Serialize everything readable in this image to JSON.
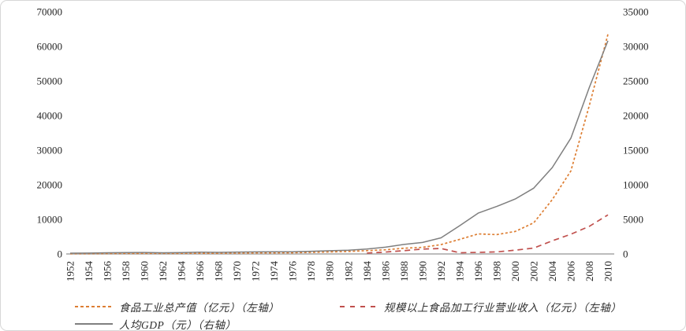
{
  "chart_data": {
    "type": "line",
    "title": "",
    "x": [
      1952,
      1954,
      1956,
      1958,
      1960,
      1962,
      1964,
      1966,
      1968,
      1970,
      1972,
      1974,
      1976,
      1978,
      1980,
      1982,
      1984,
      1986,
      1988,
      1990,
      1992,
      1994,
      1996,
      1998,
      2000,
      2002,
      2004,
      2006,
      2008,
      2010
    ],
    "x_tick_labels": [
      "1952",
      "1954",
      "1956",
      "1958",
      "1960",
      "1962",
      "1964",
      "1966",
      "1968",
      "1970",
      "1972",
      "1974",
      "1976",
      "1978",
      "1980",
      "1982",
      "1984",
      "1986",
      "1988",
      "1990",
      "1992",
      "1994",
      "1996",
      "1998",
      "2000",
      "2002",
      "2004",
      "2006",
      "2008",
      "2010"
    ],
    "left_axis": {
      "min": 0,
      "max": 70000,
      "tick_labels": [
        "70000",
        "60000",
        "50000",
        "40000",
        "30000",
        "20000",
        "10000",
        "0"
      ]
    },
    "right_axis": {
      "min": 0,
      "max": 35000,
      "tick_labels": [
        "35000",
        "30000",
        "25000",
        "20000",
        "15000",
        "10000",
        "5000",
        "0"
      ]
    },
    "grid": false,
    "legend_position": "bottom",
    "series": [
      {
        "name": "食品工业总产值（亿元）（左轴）",
        "axis": "left",
        "color": "#dd7e33",
        "style": "dotted",
        "values": [
          83,
          100,
          125,
          160,
          185,
          155,
          175,
          205,
          215,
          250,
          285,
          310,
          340,
          470,
          590,
          730,
          950,
          1200,
          1650,
          1900,
          2700,
          4200,
          5800,
          5600,
          6500,
          9000,
          15700,
          24000,
          43000,
          63500
        ]
      },
      {
        "name": "规模以上食品加工行业营业收入（亿元）（左轴）",
        "axis": "left",
        "color": "#c0504d",
        "style": "dashed",
        "values": [
          null,
          null,
          null,
          null,
          null,
          null,
          null,
          null,
          null,
          null,
          null,
          null,
          null,
          null,
          null,
          null,
          250,
          550,
          950,
          1400,
          1600,
          350,
          450,
          600,
          1100,
          1700,
          3800,
          5700,
          8000,
          11300
        ]
      },
      {
        "name": "人均GDP（元）（右轴）",
        "axis": "right",
        "color": "#7f7f7f",
        "style": "solid",
        "values": [
          119,
          128,
          165,
          200,
          218,
          173,
          208,
          254,
          222,
          275,
          292,
          314,
          316,
          385,
          468,
          533,
          699,
          973,
          1371,
          1663,
          2334,
          4081,
          5898,
          6860,
          7942,
          9506,
          12487,
          16738,
          24100,
          30808
        ]
      }
    ],
    "axis_text_color": "#262626",
    "baseline_color": "#a6a6a6"
  }
}
